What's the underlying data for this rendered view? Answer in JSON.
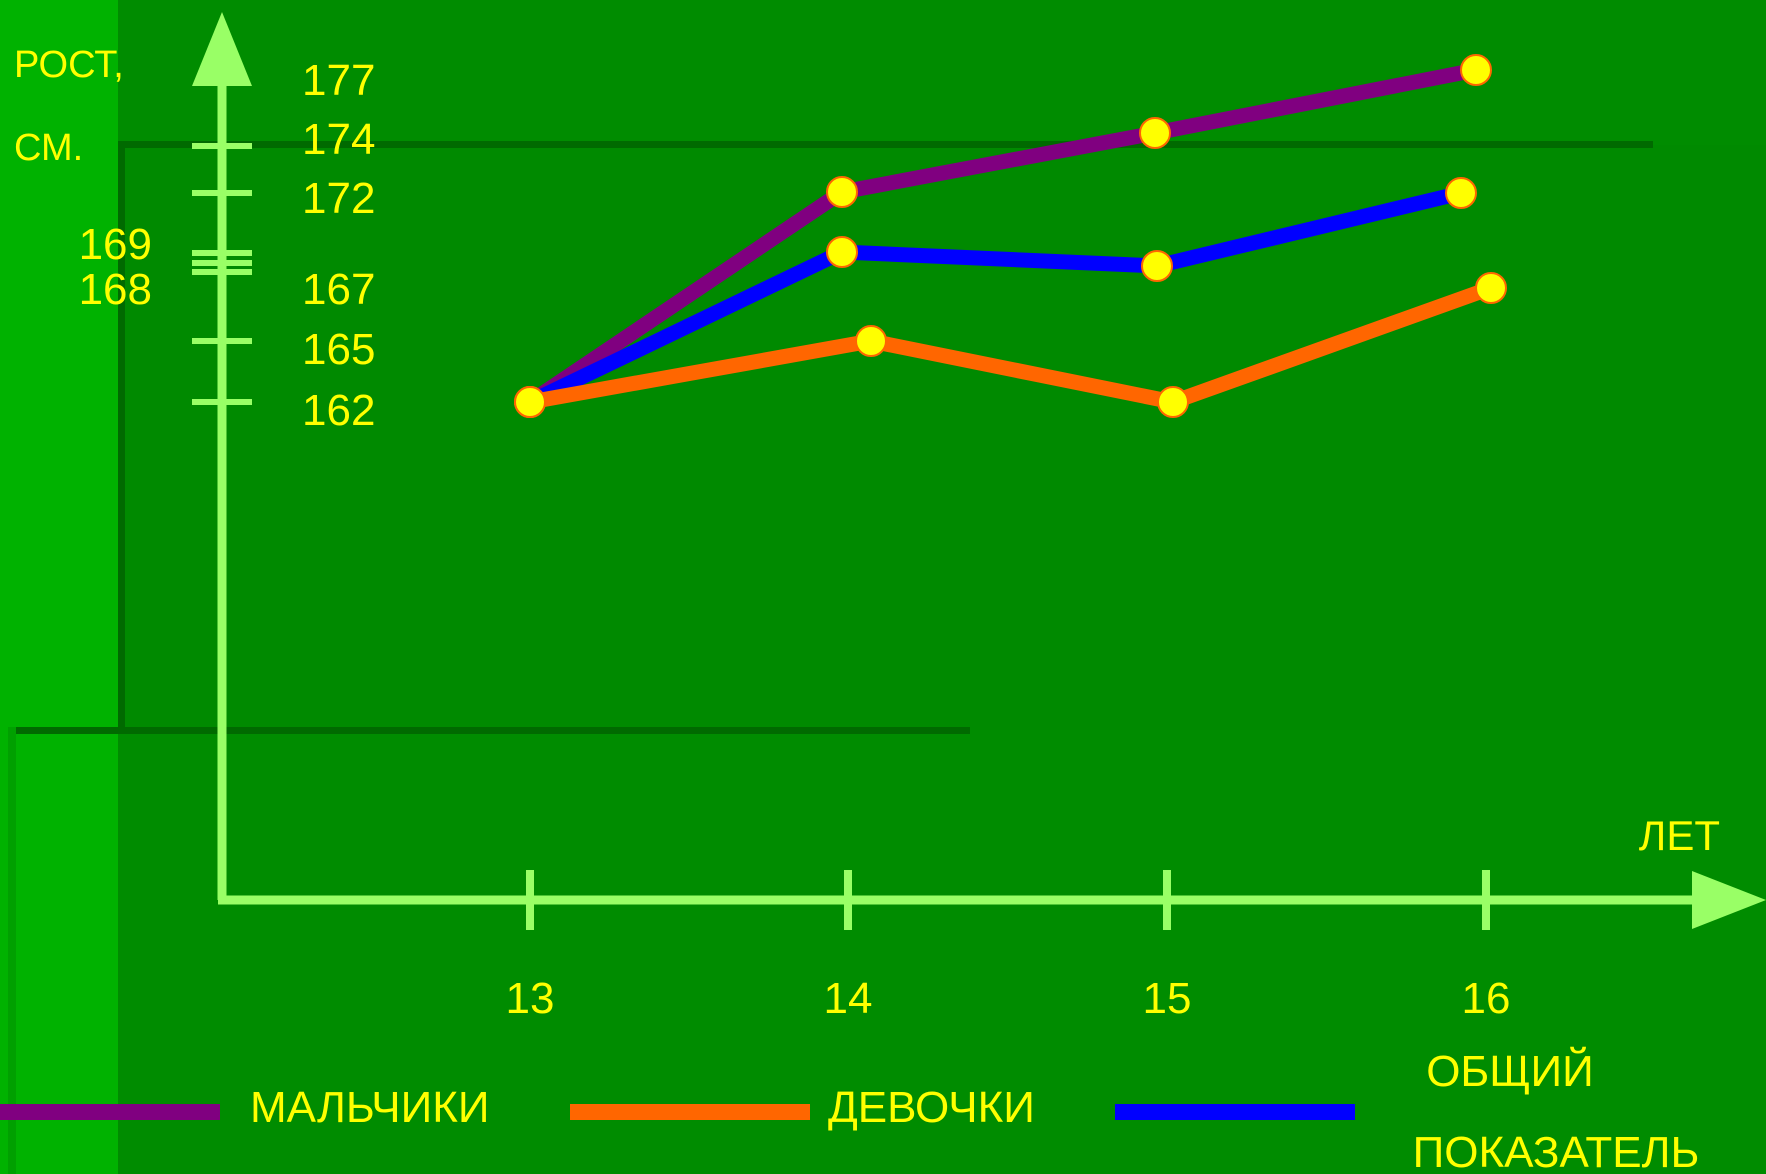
{
  "colors": {
    "background": "#008c00",
    "panel_left": "#00b200",
    "axis": "#99ff66",
    "label_text": "#ffff00",
    "marker_fill": "#ffff00",
    "marker_stroke": "#ff6600"
  },
  "chart_data": {
    "type": "line",
    "title": "",
    "ylabel_line1": "РОСТ,",
    "ylabel_line2": "СМ.",
    "xlabel": "ЛЕТ",
    "x": [
      13,
      14,
      15,
      16
    ],
    "x_tick_labels": [
      "13",
      "14",
      "15",
      "16"
    ],
    "y_tick_labels_right": [
      "177",
      "174",
      "172",
      "167",
      "165",
      "162"
    ],
    "y_tick_labels_left": [
      "169",
      "168"
    ],
    "y_tick_marks": [
      174,
      172,
      169,
      168,
      167,
      165,
      162
    ],
    "series": [
      {
        "name": "МАЛЬЧИКИ",
        "color": "#800080",
        "values": [
          162,
          172,
          174,
          177
        ]
      },
      {
        "name": "ОБЩИЙ ПОКАЗАТЕЛЬ",
        "color": "#0000ff",
        "values": [
          162,
          169,
          168,
          172
        ]
      },
      {
        "name": "ДЕВОЧКИ",
        "color": "#ff6600",
        "values": [
          162,
          165,
          162,
          167
        ]
      }
    ],
    "legend": [
      {
        "label": "МАЛЬЧИКИ",
        "color": "#800080"
      },
      {
        "label": "ДЕВОЧКИ",
        "color": "#ff6600"
      },
      {
        "label_line1": "ОБЩИЙ",
        "label_line2": "ПОКАЗАТЕЛЬ",
        "color": "#0000ff"
      }
    ],
    "legend_position": "bottom",
    "grid": false
  }
}
